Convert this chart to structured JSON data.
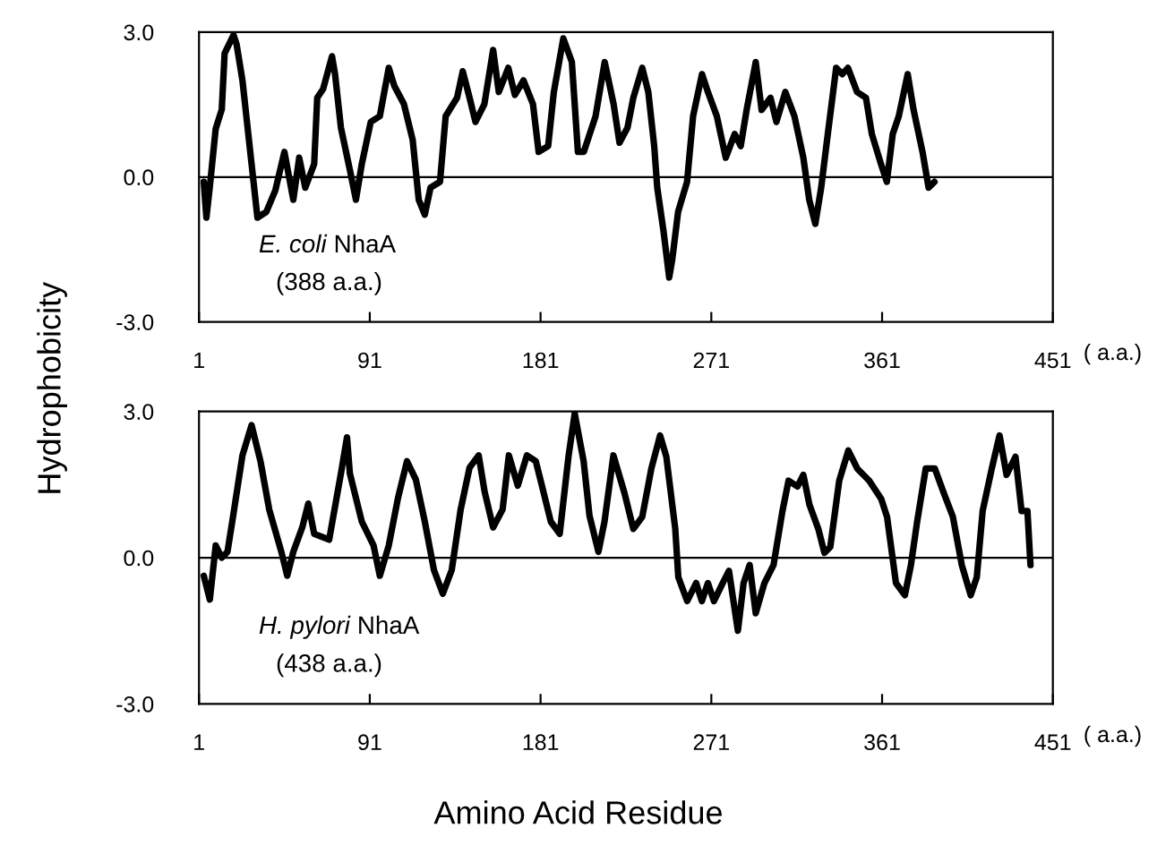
{
  "chart_data": [
    {
      "type": "line",
      "xlabel": "( a.a.)",
      "ylabel": "Hydrophobicity",
      "annotations": [
        "E. coli",
        "NhaA",
        "(388 a.a.)"
      ],
      "xlim": [
        1,
        451
      ],
      "xticks": [
        1,
        91,
        181,
        271,
        361,
        451
      ],
      "ylim": [
        -3,
        3
      ],
      "yticks": [
        {
          "value": -3,
          "label": "-3.0"
        },
        {
          "value": 0,
          "label": "0.0"
        },
        {
          "value": 3,
          "label": "3.0"
        }
      ],
      "grid": false,
      "legend": false,
      "ref_lines": [
        {
          "axis": "y",
          "value": 0,
          "label": null,
          "color": "#000000"
        }
      ],
      "series": [
        {
          "color": "#000000",
          "x": [
            3.5,
            4.9,
            6.7,
            9.8,
            13,
            14.5,
            19.2,
            20.8,
            23.9,
            28.7,
            31.8,
            36.5,
            41.2,
            46,
            50.7,
            53.8,
            57,
            61.7,
            63.3,
            66.4,
            71.1,
            72.7,
            75.8,
            80.5,
            83.7,
            86.8,
            91.5,
            96.3,
            101,
            104,
            109,
            113.6,
            116.8,
            120,
            123,
            128,
            131,
            137,
            140,
            143.6,
            146.7,
            151.4,
            156,
            159,
            164,
            167.5,
            172,
            177,
            180,
            185,
            188,
            193,
            197.5,
            200.7,
            203.8,
            210,
            214.8,
            219.5,
            222.6,
            226.8,
            229.9,
            234.6,
            237.8,
            240.9,
            242.5,
            245.7,
            248.8,
            250.4,
            253.5,
            258.2,
            261.4,
            266.1,
            269.2,
            273.9,
            278.6,
            283.3,
            286.5,
            289.6,
            294.4,
            297.5,
            302.2,
            305.3,
            310,
            314.8,
            319.5,
            322.6,
            325.8,
            328.9,
            332,
            336.8,
            340,
            343,
            347.8,
            352.5,
            355.6,
            360.4,
            363.5,
            366.6,
            369.8,
            374.5,
            377.6,
            382.3,
            385.5,
            388.6
          ],
          "values": [
            -0.1,
            -0.84,
            -0.2,
            1.0,
            1.4,
            2.56,
            2.94,
            2.75,
            2.0,
            0.27,
            -0.84,
            -0.72,
            -0.28,
            0.52,
            -0.47,
            0.4,
            -0.22,
            0.27,
            1.64,
            1.82,
            2.5,
            2.13,
            1.02,
            0.15,
            -0.47,
            0.27,
            1.14,
            1.26,
            2.26,
            1.88,
            1.51,
            0.77,
            -0.47,
            -0.78,
            -0.22,
            -0.1,
            1.26,
            1.64,
            2.19,
            1.64,
            1.14,
            1.51,
            2.63,
            1.76,
            2.26,
            1.7,
            2.0,
            1.51,
            0.52,
            0.64,
            1.76,
            2.87,
            2.38,
            0.52,
            0.52,
            1.26,
            2.38,
            1.51,
            0.71,
            1.02,
            1.64,
            2.26,
            1.76,
            0.64,
            -0.22,
            -1.09,
            -2.08,
            -1.71,
            -0.72,
            -0.1,
            1.26,
            2.13,
            1.76,
            1.26,
            0.4,
            0.89,
            0.64,
            1.39,
            2.38,
            1.39,
            1.64,
            1.14,
            1.76,
            1.26,
            0.4,
            -0.47,
            -0.97,
            -0.22,
            0.77,
            2.26,
            2.13,
            2.26,
            1.76,
            1.64,
            0.89,
            0.27,
            -0.1,
            0.89,
            1.26,
            2.13,
            1.39,
            0.52,
            -0.22,
            -0.1
          ]
        }
      ]
    },
    {
      "type": "line",
      "xlabel": "( a.a.)",
      "annotations": [
        "H. pylori",
        "NhaA",
        "(438 a.a.)",
        "Amino Acid Residue"
      ],
      "xlim": [
        1,
        451
      ],
      "xticks": [
        1,
        91,
        181,
        271,
        361,
        451
      ],
      "ylim": [
        -3,
        3
      ],
      "yticks": [
        {
          "value": -3,
          "label": "-3.0"
        },
        {
          "value": 0,
          "label": "0.0"
        },
        {
          "value": 3,
          "label": "3.0"
        }
      ],
      "grid": false,
      "legend": false,
      "ref_lines": [
        {
          "axis": "y",
          "value": 0,
          "label": null,
          "color": "#000000"
        }
      ],
      "series": [
        {
          "color": "#000000",
          "x": [
            3.5,
            6.7,
            9.8,
            13,
            16,
            19,
            23.9,
            28.7,
            33.4,
            38,
            44.4,
            47.5,
            50.7,
            55.4,
            58.6,
            61.7,
            69.6,
            75.8,
            79,
            80.5,
            86.8,
            93,
            96.3,
            101,
            105.9,
            110.6,
            115.3,
            120,
            124.8,
            129.5,
            134.2,
            138.9,
            143.6,
            148.4,
            151.5,
            156,
            161,
            164.3,
            169,
            173.8,
            178.5,
            181.7,
            186.4,
            191.1,
            195.8,
            199,
            203.7,
            206.8,
            211.5,
            214.7,
            219.4,
            225.2,
            229.9,
            234.6,
            239.4,
            244,
            247.3,
            252,
            253.6,
            258.3,
            263,
            266,
            269.2,
            272.4,
            277,
            280.3,
            285,
            288,
            291.2,
            294.4,
            299,
            303.8,
            308.5,
            311.7,
            316.4,
            319.5,
            322.7,
            327.4,
            330.6,
            333.7,
            338.4,
            343.2,
            347.9,
            354.2,
            360.5,
            363.6,
            368.3,
            373,
            376.2,
            379.4,
            384,
            388.8,
            393.5,
            398.3,
            403,
            407.7,
            410.9,
            414,
            418.8,
            422.9,
            426.6,
            431.3,
            434.5,
            437.6,
            439.2
          ],
          "values": [
            -0.37,
            -0.86,
            0.25,
            0,
            0.12,
            0.86,
            2.1,
            2.72,
            1.98,
            0.99,
            0.12,
            -0.37,
            0.12,
            0.62,
            1.11,
            0.49,
            0.37,
            1.73,
            2.47,
            1.73,
            0.74,
            0.25,
            -0.37,
            0.25,
            1.23,
            1.98,
            1.6,
            0.74,
            -0.25,
            -0.74,
            -0.25,
            0.99,
            1.85,
            2.1,
            1.36,
            0.62,
            0.99,
            2.1,
            1.48,
            2.1,
            1.98,
            1.48,
            0.74,
            0.49,
            2.1,
            2.96,
            1.98,
            0.86,
            0.12,
            0.74,
            2.1,
            1.33,
            0.59,
            0.84,
            1.83,
            2.51,
            2.07,
            0.59,
            -0.4,
            -0.89,
            -0.52,
            -0.89,
            -0.52,
            -0.89,
            -0.52,
            -0.27,
            -1.5,
            -0.52,
            -0.15,
            -1.14,
            -0.52,
            -0.15,
            0.96,
            1.58,
            1.46,
            1.7,
            1.09,
            0.59,
            0.1,
            0.22,
            1.58,
            2.2,
            1.83,
            1.58,
            1.21,
            0.84,
            -0.52,
            -0.77,
            -0.15,
            0.72,
            1.83,
            1.83,
            1.33,
            0.84,
            -0.15,
            -0.77,
            -0.4,
            0.96,
            1.83,
            2.51,
            1.7,
            2.07,
            0.96,
            0.96,
            -0.15
          ]
        }
      ]
    }
  ]
}
